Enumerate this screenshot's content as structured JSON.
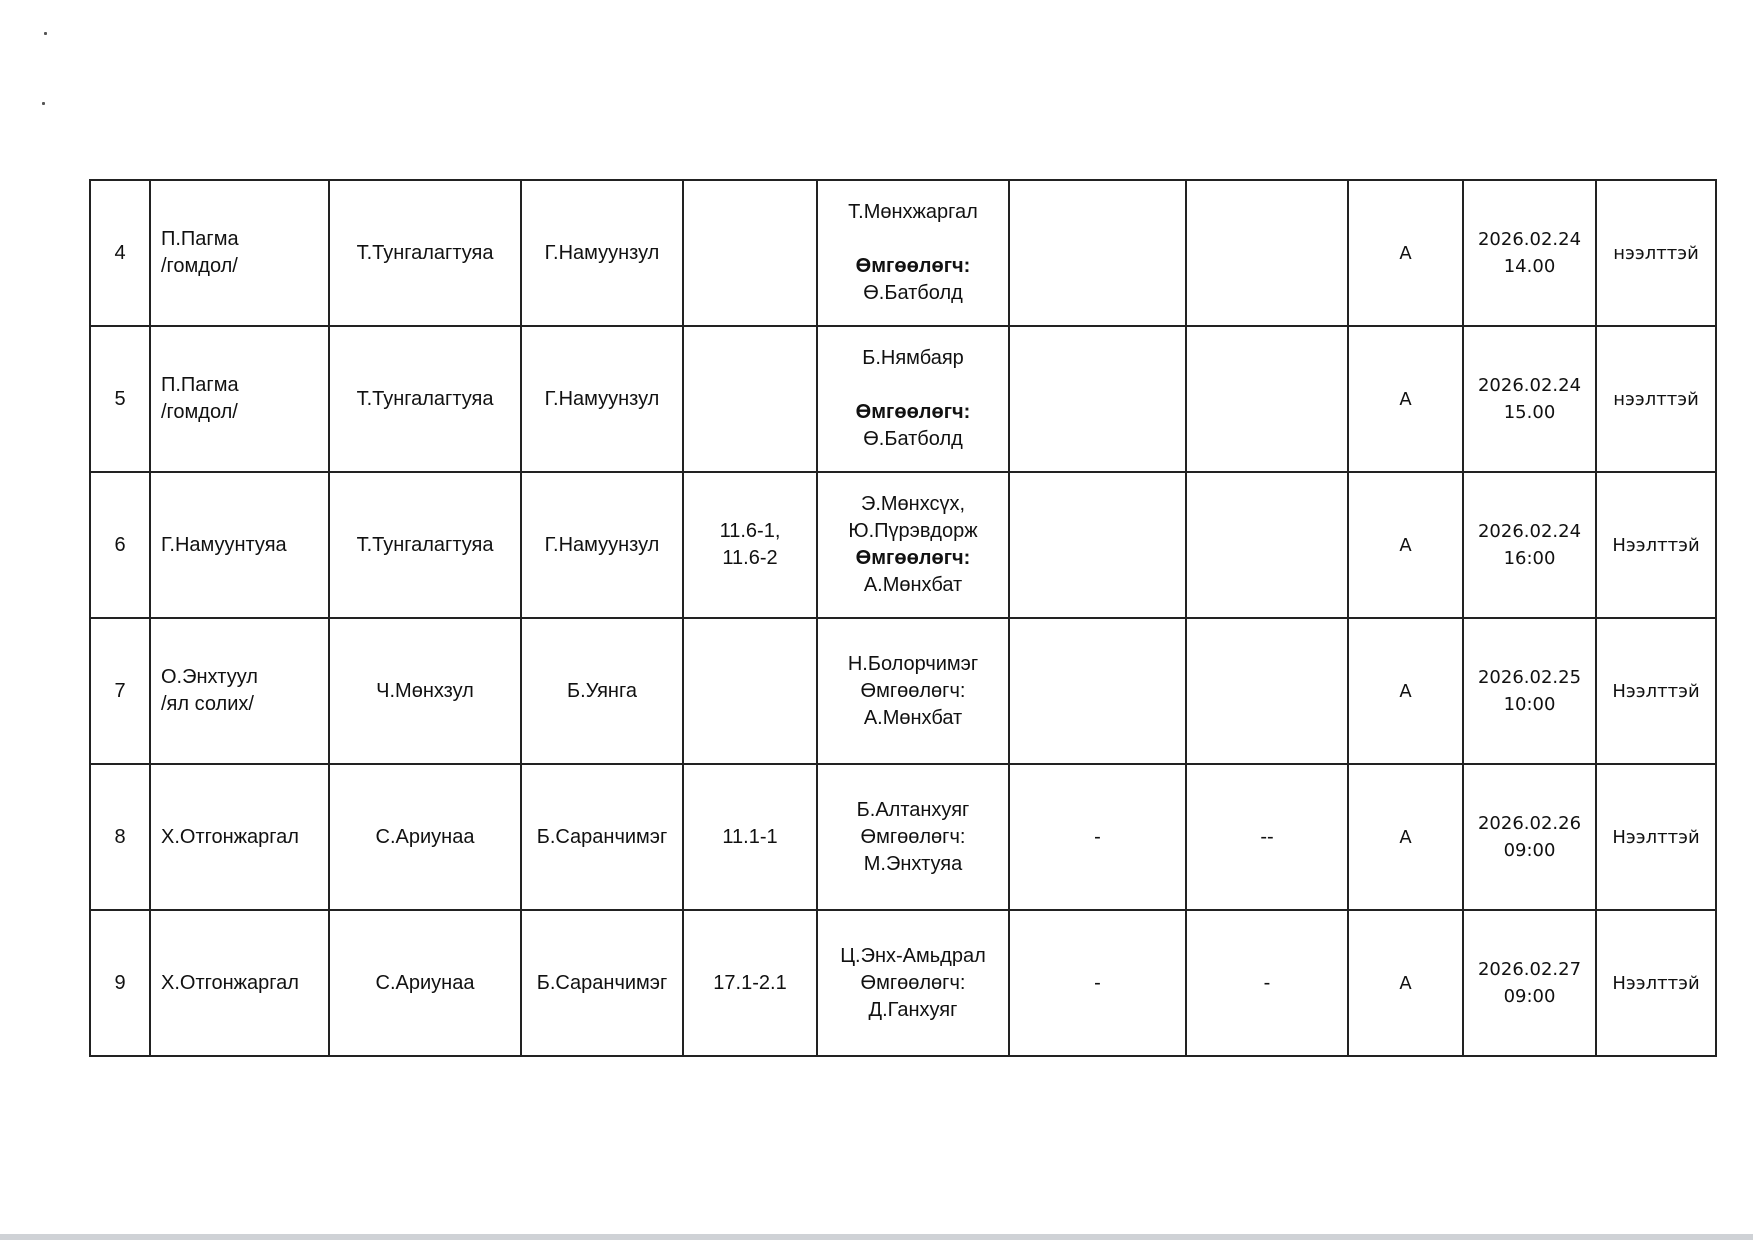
{
  "rows": [
    {
      "no": "4",
      "party": [
        "П.Пагма",
        "/гомдол/"
      ],
      "judge": "Т.Тунгалагтуяа",
      "clerk": "Г.Намуунзул",
      "article": [],
      "participants": [
        {
          "t": "Т.Мөнхжаргал"
        },
        {
          "t": ""
        },
        {
          "t": "Өмгөөлөгч:",
          "bold": true
        },
        {
          "t": "Ө.Батболд"
        }
      ],
      "col7": "",
      "col8": "",
      "room": "А",
      "datetime": [
        "2026.02.24",
        "14.00"
      ],
      "status": "нээлттэй"
    },
    {
      "no": "5",
      "party": [
        "П.Пагма",
        "/гомдол/"
      ],
      "judge": "Т.Тунгалагтуяа",
      "clerk": "Г.Намуунзул",
      "article": [],
      "participants": [
        {
          "t": "Б.Нямбаяр"
        },
        {
          "t": ""
        },
        {
          "t": "Өмгөөлөгч:",
          "bold": true
        },
        {
          "t": "Ө.Батболд"
        }
      ],
      "col7": "",
      "col8": "",
      "room": "А",
      "datetime": [
        "2026.02.24",
        "15.00"
      ],
      "status": "нээлттэй"
    },
    {
      "no": "6",
      "party": [
        "Г.Намуунтуяа"
      ],
      "judge": "Т.Тунгалагтуяа",
      "clerk": "Г.Намуунзул",
      "article": [
        "11.6-1,",
        "11.6-2"
      ],
      "participants": [
        {
          "t": "Э.Мөнхсүх,"
        },
        {
          "t": "Ю.Пүрэвдорж"
        },
        {
          "t": "Өмгөөлөгч:",
          "bold": true
        },
        {
          "t": "А.Мөнхбат"
        }
      ],
      "col7": "",
      "col8": "",
      "room": "А",
      "datetime": [
        "2026.02.24",
        "16:00"
      ],
      "status": "Нээлттэй"
    },
    {
      "no": "7",
      "party": [
        "О.Энхтуул",
        "/ял солих/"
      ],
      "judge": "Ч.Мөнхзул",
      "clerk": "Б.Уянга",
      "article": [],
      "participants": [
        {
          "t": "Н.Болорчимэг"
        },
        {
          "t": "Өмгөөлөгч:"
        },
        {
          "t": "А.Мөнхбат"
        }
      ],
      "col7": "",
      "col8": "",
      "room": "А",
      "datetime": [
        "2026.02.25",
        "10:00"
      ],
      "status": "Нээлттэй"
    },
    {
      "no": "8",
      "party": [
        "Х.Отгонжаргал"
      ],
      "judge": "С.Ариунаа",
      "clerk": "Б.Саранчимэг",
      "article": [
        "11.1-1"
      ],
      "participants": [
        {
          "t": "Б.Алтанхуяг"
        },
        {
          "t": "Өмгөөлөгч:"
        },
        {
          "t": "М.Энхтуяа"
        }
      ],
      "col7": "-",
      "col8": "--",
      "room": "А",
      "datetime": [
        "2026.02.26",
        "09:00"
      ],
      "status": "Нээлттэй"
    },
    {
      "no": "9",
      "party": [
        "Х.Отгонжаргал"
      ],
      "judge": "С.Ариунаа",
      "clerk": "Б.Саранчимэг",
      "article": [
        "17.1-2.1"
      ],
      "participants": [
        {
          "t": "Ц.Энх-Амьдрал"
        },
        {
          "t": "Өмгөөлөгч:"
        },
        {
          "t": "Д.Ганхуяг"
        }
      ],
      "col7": "-",
      "col8": "-",
      "room": "А",
      "datetime": [
        "2026.02.27",
        "09:00"
      ],
      "status": "Нээлттэй"
    }
  ]
}
